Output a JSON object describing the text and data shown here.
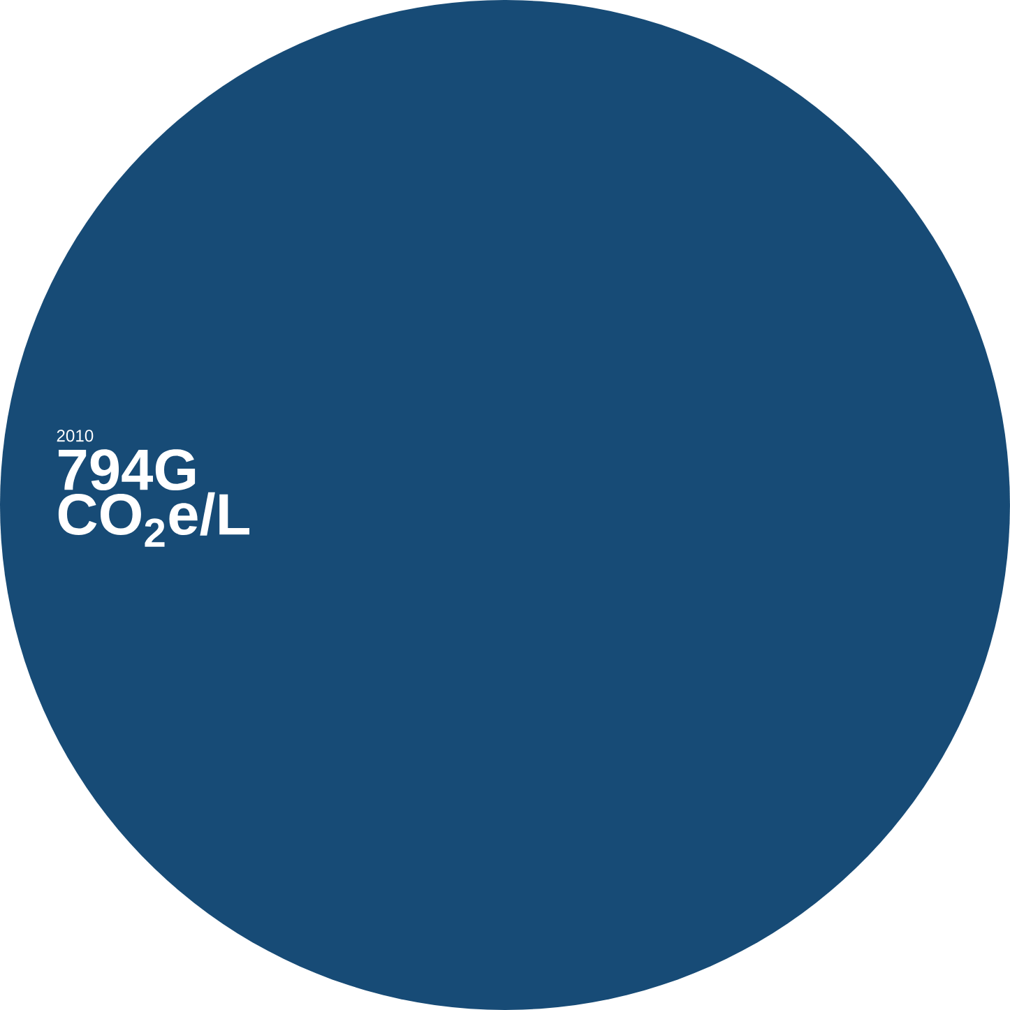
{
  "chart_data": {
    "type": "pie",
    "categories": [
      "2010"
    ],
    "values": [
      794
    ],
    "colors": [
      "#174b76"
    ],
    "data_labels": true,
    "annotations": [
      "G CO$_{2}$e/L"
    ]
  }
}
